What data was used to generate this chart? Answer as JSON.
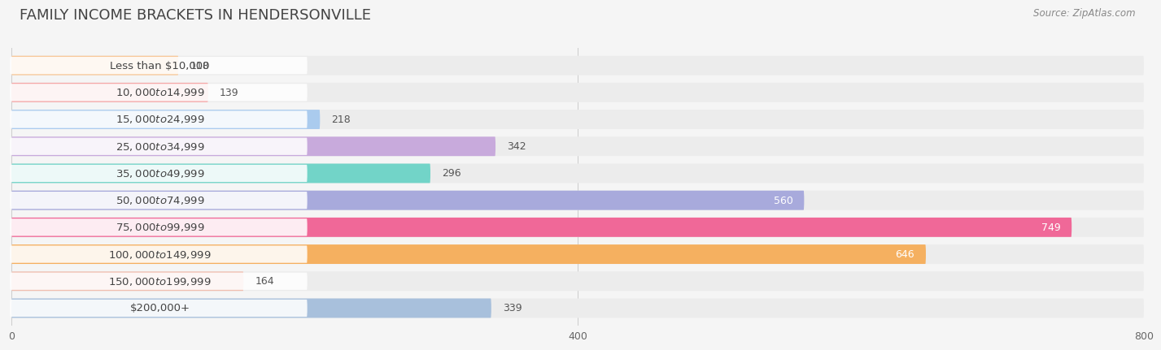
{
  "title": "FAMILY INCOME BRACKETS IN HENDERSONVILLE",
  "source": "Source: ZipAtlas.com",
  "categories": [
    "Less than $10,000",
    "$10,000 to $14,999",
    "$15,000 to $24,999",
    "$25,000 to $34,999",
    "$35,000 to $49,999",
    "$50,000 to $74,999",
    "$75,000 to $99,999",
    "$100,000 to $149,999",
    "$150,000 to $199,999",
    "$200,000+"
  ],
  "values": [
    118,
    139,
    218,
    342,
    296,
    560,
    749,
    646,
    164,
    339
  ],
  "bar_colors": [
    "#F8C99A",
    "#F5A8A8",
    "#AACBEE",
    "#C8AADC",
    "#72D4C8",
    "#A8AADC",
    "#F06898",
    "#F5B060",
    "#F0BEB0",
    "#A8C0DC"
  ],
  "value_inside": [
    false,
    false,
    false,
    false,
    false,
    true,
    true,
    true,
    false,
    false
  ],
  "background_color": "#f5f5f5",
  "bar_bg_color": "#e4e4e4",
  "row_bg_color": "#ececec",
  "xlim": [
    0,
    800
  ],
  "xticks": [
    0,
    400,
    800
  ],
  "title_fontsize": 13,
  "label_fontsize": 9.5,
  "value_fontsize": 9
}
